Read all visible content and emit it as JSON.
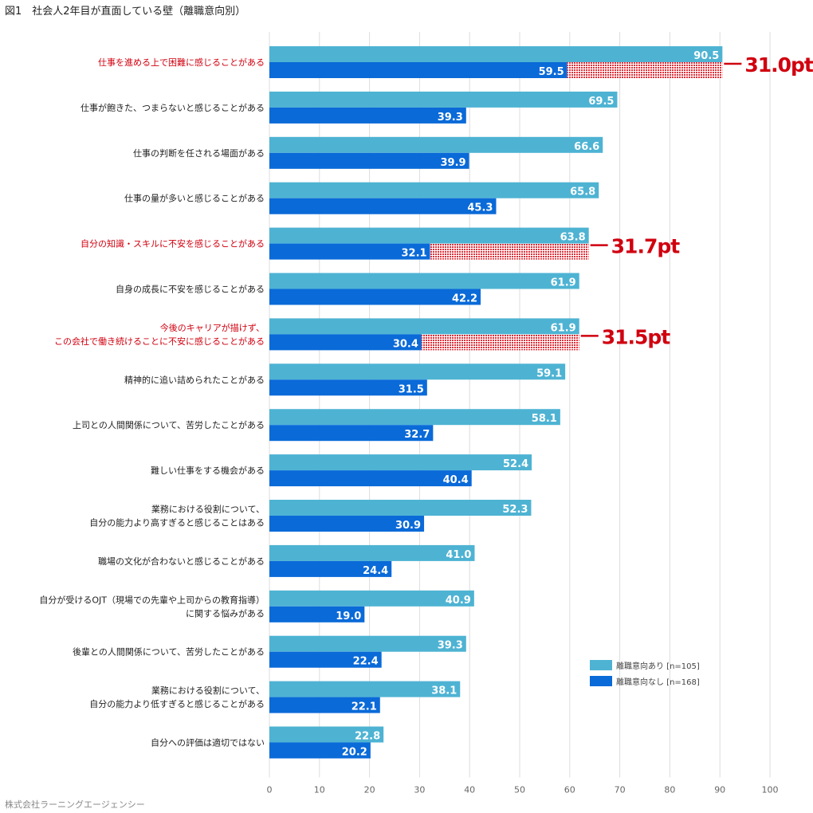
{
  "chart_data": {
    "type": "bar",
    "orientation": "horizontal",
    "title": "図1　社会人2年目が直面している壁（離職意向別）",
    "source": "株式会社ラーニングエージェンシー",
    "xlim": [
      0,
      100
    ],
    "xticks": [
      0,
      10,
      20,
      30,
      40,
      50,
      60,
      70,
      80,
      90,
      100
    ],
    "grid": true,
    "legend_position": "bottom-right",
    "colors": {
      "series1": "#4eb3d3",
      "series2": "#0a6ad8",
      "highlight": "#d0000f"
    },
    "categories": [
      [
        "仕事を進める上で困難に感じることがある"
      ],
      [
        "仕事が飽きた、つまらないと感じることがある"
      ],
      [
        "仕事の判断を任される場面がある"
      ],
      [
        "仕事の量が多いと感じることがある"
      ],
      [
        "自分の知識・スキルに不安を感じることがある"
      ],
      [
        "自身の成長に不安を感じることがある"
      ],
      [
        "今後のキャリアが描けず、",
        "この会社で働き続けることに不安に感じることがある"
      ],
      [
        "精神的に追い詰められたことがある"
      ],
      [
        "上司との人間関係について、苦労したことがある"
      ],
      [
        "難しい仕事をする機会がある"
      ],
      [
        "業務における役割について、",
        "自分の能力より高すぎると感じることはある"
      ],
      [
        "職場の文化が合わないと感じることがある"
      ],
      [
        "自分が受けるOJT（現場での先輩や上司からの教育指導）",
        "に関する悩みがある"
      ],
      [
        "後輩との人間関係について、苦労したことがある"
      ],
      [
        "業務における役割について、",
        "自分の能力より低すぎると感じることがある"
      ],
      [
        "自分への評価は適切ではない"
      ]
    ],
    "highlighted": [
      0,
      4,
      6
    ],
    "series": [
      {
        "name": "離職意向あり [n=105]",
        "values": [
          90.5,
          69.5,
          66.6,
          65.8,
          63.8,
          61.9,
          61.9,
          59.1,
          58.1,
          52.4,
          52.3,
          41.0,
          40.9,
          39.3,
          38.1,
          22.8
        ]
      },
      {
        "name": "離職意向なし [n=168]",
        "values": [
          59.5,
          39.3,
          39.9,
          45.3,
          32.1,
          42.2,
          30.4,
          31.5,
          32.7,
          40.4,
          30.9,
          24.4,
          19.0,
          22.4,
          22.1,
          20.2
        ]
      }
    ],
    "value_labels": [
      [
        "90.5",
        "69.5",
        "66.6",
        "65.8",
        "63.8",
        "61.9",
        "61.9",
        "59.1",
        "58.1",
        "52.4",
        "52.3",
        "41.0",
        "40.9",
        "39.3",
        "38.1",
        "22.8"
      ],
      [
        "59.5",
        "39.3",
        "39.9",
        "45.3",
        "32.1",
        "42.2",
        "30.4",
        "31.5",
        "32.7",
        "40.4",
        "30.9",
        "24.4",
        "19.0",
        "22.4",
        "22.1",
        "20.2"
      ]
    ],
    "annotations": [
      {
        "category": 0,
        "label": "31.0pt"
      },
      {
        "category": 4,
        "label": "31.7pt"
      },
      {
        "category": 6,
        "label": "31.5pt"
      }
    ]
  }
}
